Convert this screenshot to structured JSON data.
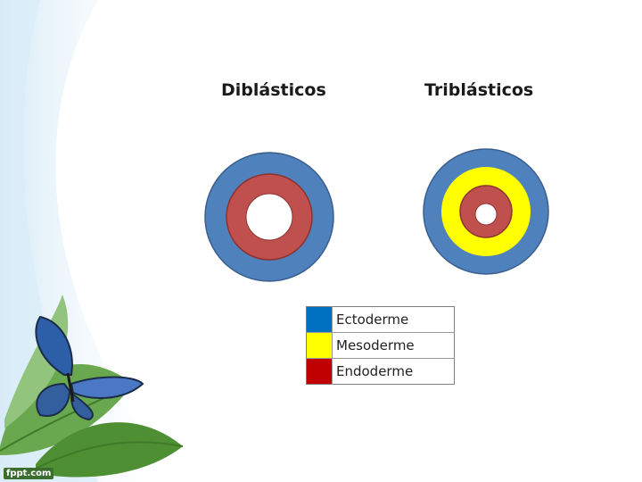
{
  "diagram": {
    "titles": {
      "left": "Diblásticos",
      "right": "Triblásticos"
    },
    "colors": {
      "ectoderm": "#4f81bd",
      "mesoderm": "#ffff00",
      "endoderm": "#c0504d",
      "legend_ectoderm": "#0070c0",
      "legend_mesoderm": "#ffff00",
      "legend_endoderm": "#c00000"
    },
    "legend": [
      {
        "label": "Ectoderme",
        "color": "#0070c0"
      },
      {
        "label": "Mesoderme",
        "color": "#ffff00"
      },
      {
        "label": "Endoderme",
        "color": "#c00000"
      }
    ]
  },
  "decor": {
    "watermark": "fppt.com",
    "icons": [
      "butterfly-icon",
      "leaf-icon"
    ]
  }
}
